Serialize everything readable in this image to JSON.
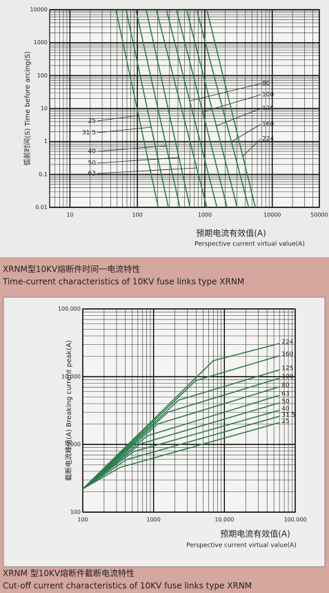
{
  "chart_data": [
    {
      "type": "line",
      "xscale": "log",
      "yscale": "log",
      "grid": true,
      "caption": "XRNM型10KV熔断件时间一电流特性",
      "caption_en": "Time-current characteristics of 10KV fuse links type XRNM",
      "x_label": "预期电流有效值(A)",
      "x_label_en": "Perspective current virtual value(A)",
      "y_label": "弧前时间(S) Time before arcing(S)",
      "xlim": [
        5,
        50000
      ],
      "ylim": [
        0.01,
        10000
      ],
      "xticks": [
        10,
        100,
        1000,
        10000,
        50000
      ],
      "yticks": [
        0.01,
        0.1,
        1,
        10,
        100,
        1000,
        10000
      ],
      "series": [
        {
          "name": "25",
          "color": "#2f7d4f",
          "x": [
            48,
            204
          ],
          "values": [
            10000,
            0.01
          ]
        },
        {
          "name": "31.5",
          "color": "#2f7d4f",
          "x": [
            68,
            288
          ],
          "values": [
            10000,
            0.01
          ]
        },
        {
          "name": "40",
          "color": "#2f7d4f",
          "x": [
            95,
            427
          ],
          "values": [
            10000,
            0.01
          ]
        },
        {
          "name": "50",
          "color": "#2f7d4f",
          "x": [
            135,
            603
          ],
          "values": [
            10000,
            0.01
          ]
        },
        {
          "name": "63",
          "color": "#2f7d4f",
          "x": [
            191,
            1070
          ],
          "values": [
            10000,
            0.01
          ]
        },
        {
          "name": "80",
          "color": "#2f7d4f",
          "x": [
            269,
            1514
          ],
          "values": [
            10000,
            0.01
          ]
        },
        {
          "name": "100",
          "color": "#2f7d4f",
          "x": [
            380,
            2138
          ],
          "values": [
            10000,
            0.01
          ]
        },
        {
          "name": "125",
          "color": "#2f7d4f",
          "x": [
            537,
            3020
          ],
          "values": [
            10000,
            0.01
          ]
        },
        {
          "name": "160",
          "color": "#2f7d4f",
          "x": [
            759,
            4467
          ],
          "values": [
            10000,
            0.01
          ]
        },
        {
          "name": "224",
          "color": "#2f7d4f",
          "x": [
            1072,
            5623
          ],
          "values": [
            10000,
            0.01
          ]
        }
      ]
    },
    {
      "type": "line",
      "xscale": "log",
      "yscale": "log",
      "grid": true,
      "caption": "XRNM 型10KV熔断件截断电流特性",
      "caption_en": "Cut-off current characteristics of 10KV fuse links type XRNM",
      "x_label": "预期电流有效值(A)",
      "x_label_en": "Perspective current virtual value(A)",
      "y_label": "截断电流峰值(A) Breaking current peak(A)",
      "xlim": [
        100,
        100000
      ],
      "ylim": [
        100,
        100000
      ],
      "xticks": [
        100,
        1000,
        {
          "value": 10000,
          "label": "10.000"
        },
        {
          "value": 100000,
          "label": "100.000"
        }
      ],
      "yticks": [
        100,
        1000,
        {
          "value": 10000,
          "label": "10.000"
        },
        {
          "value": 100000,
          "label": "100.000"
        }
      ],
      "series": [
        {
          "name": "25",
          "color": "#2f7d4f",
          "x": [
            100,
            331,
            60000
          ],
          "values": [
            220,
            455,
            2100
          ]
        },
        {
          "name": "31.5",
          "color": "#2f7d4f",
          "x": [
            100,
            415,
            60000
          ],
          "values": [
            220,
            597,
            2600
          ]
        },
        {
          "name": "40",
          "color": "#2f7d4f",
          "x": [
            100,
            520,
            60000
          ],
          "values": [
            220,
            781,
            3200
          ]
        },
        {
          "name": "50",
          "color": "#2f7d4f",
          "x": [
            100,
            652,
            60000
          ],
          "values": [
            220,
            1020,
            4100
          ]
        },
        {
          "name": "63",
          "color": "#2f7d4f",
          "x": [
            100,
            817,
            60000
          ],
          "values": [
            220,
            1340,
            5300
          ]
        },
        {
          "name": "80",
          "color": "#2f7d4f",
          "x": [
            100,
            1145,
            60000
          ],
          "values": [
            220,
            2000,
            7100
          ]
        },
        {
          "name": "100",
          "color": "#2f7d4f",
          "x": [
            100,
            1610,
            60000
          ],
          "values": [
            220,
            3000,
            9500
          ]
        },
        {
          "name": "125",
          "color": "#2f7d4f",
          "x": [
            100,
            2250,
            60000
          ],
          "values": [
            220,
            4500,
            12600
          ]
        },
        {
          "name": "160",
          "color": "#2f7d4f",
          "x": [
            100,
            3960,
            60000
          ],
          "values": [
            220,
            8770,
            20400
          ]
        },
        {
          "name": "224",
          "color": "#2f7d4f",
          "x": [
            100,
            6970,
            60000
          ],
          "values": [
            220,
            17200,
            30900
          ]
        }
      ]
    }
  ]
}
